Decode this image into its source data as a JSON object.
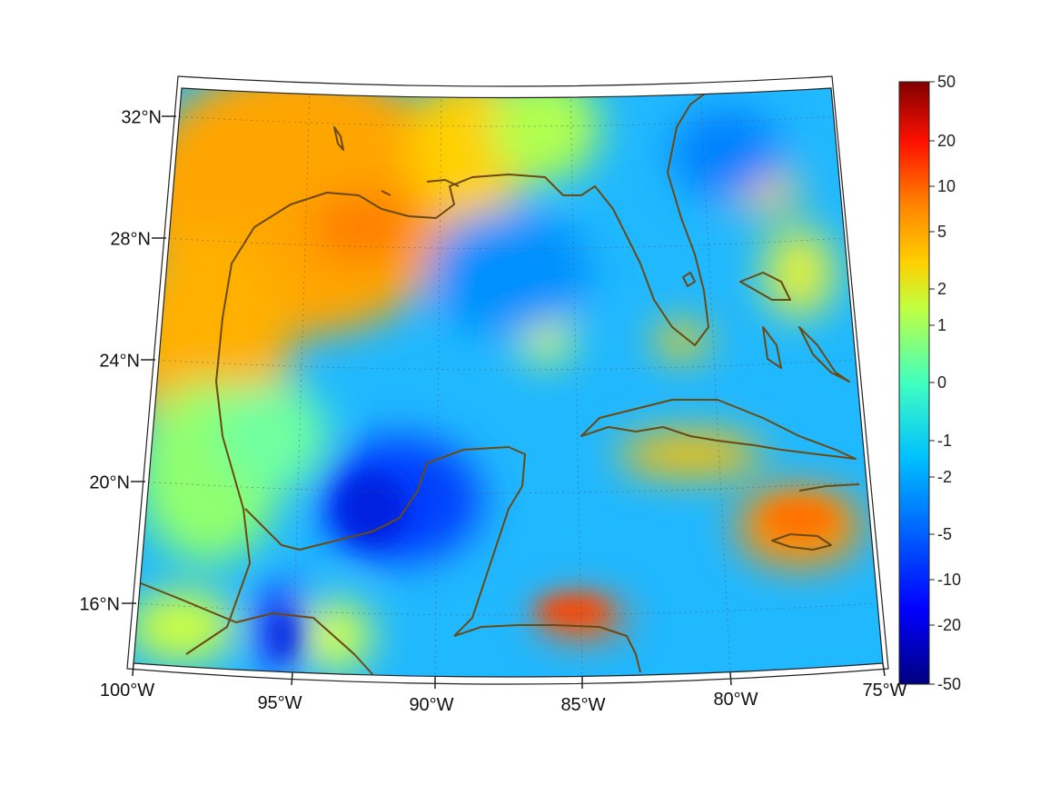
{
  "map": {
    "projection": "conic",
    "lon_range": [
      -100,
      -75
    ],
    "lat_range": [
      14,
      33
    ],
    "grid": true,
    "lon_ticks": [
      {
        "value": -100,
        "label": "100°W"
      },
      {
        "value": -95,
        "label": "95°W"
      },
      {
        "value": -90,
        "label": "90°W"
      },
      {
        "value": -85,
        "label": "85°W"
      },
      {
        "value": -80,
        "label": "80°W"
      },
      {
        "value": -75,
        "label": "75°W"
      }
    ],
    "lat_ticks": [
      {
        "value": 32,
        "label": "32°N"
      },
      {
        "value": 28,
        "label": "28°N"
      },
      {
        "value": 24,
        "label": "24°N"
      },
      {
        "value": 20,
        "label": "20°N"
      },
      {
        "value": 16,
        "label": "16°N"
      }
    ],
    "coastline_color": "#6b4a12",
    "colormap": "jet"
  },
  "colorbar": {
    "ticks": [
      "50",
      "20",
      "10",
      "5",
      "2",
      "1",
      "0",
      "-1",
      "-2",
      "-5",
      "-10",
      "-20",
      "-50"
    ],
    "colors": [
      "#800000",
      "#ff0000",
      "#ff8000",
      "#ffff00",
      "#80ff80",
      "#00ffff",
      "#0080ff",
      "#0000ff",
      "#000080"
    ]
  }
}
